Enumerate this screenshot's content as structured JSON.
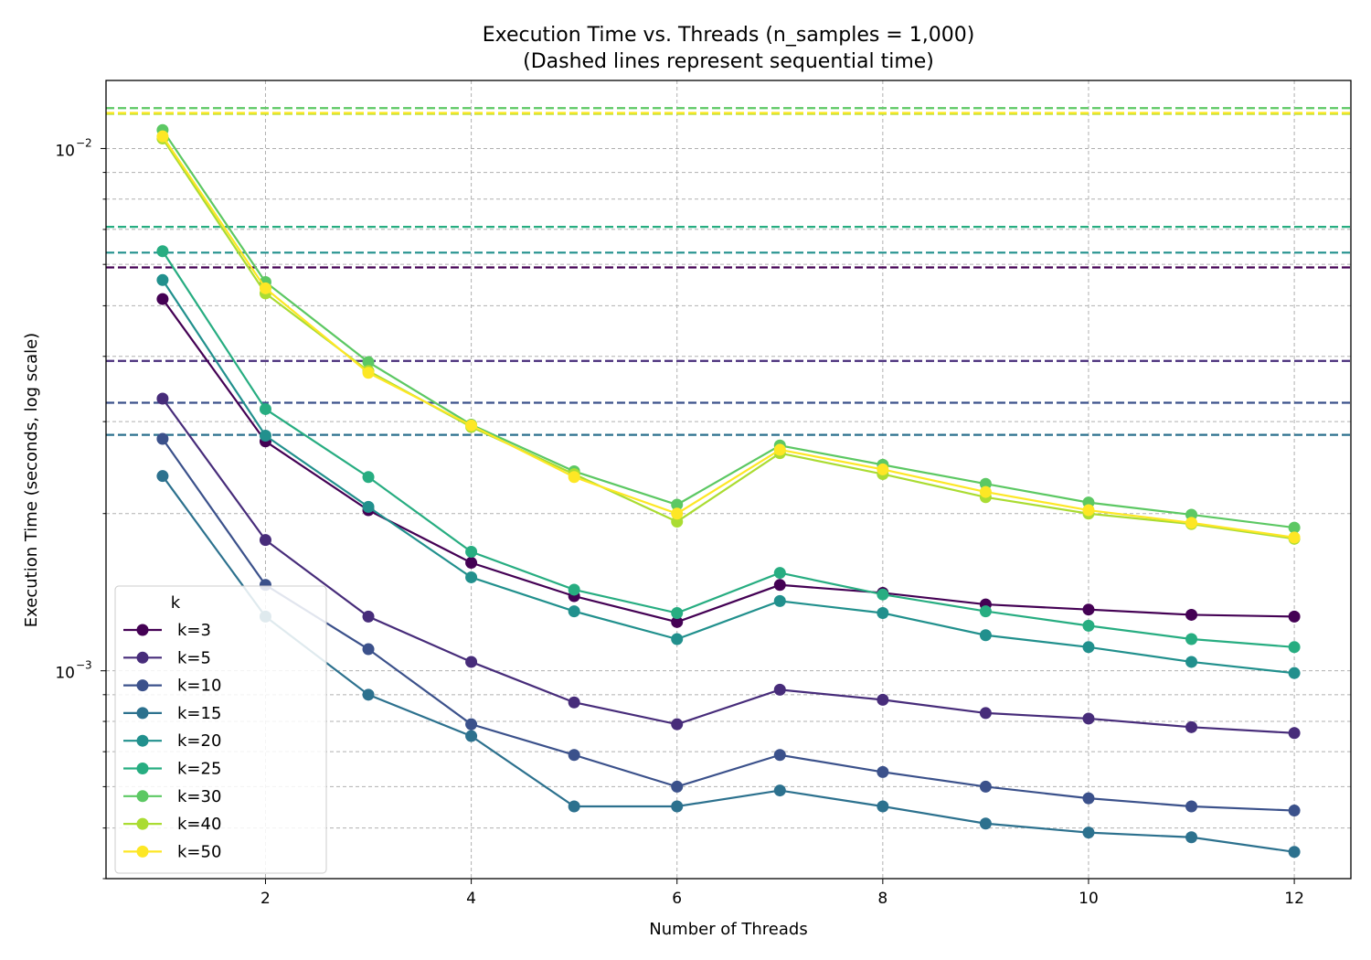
{
  "chart_data": {
    "type": "line",
    "title": "Execution Time vs. Threads (n_samples = 1,000)",
    "subtitle": "(Dashed lines represent sequential time)",
    "xlabel": "Number of Threads",
    "ylabel": "Execution Time (seconds, log scale)",
    "yscale": "log",
    "xlim": [
      0.45,
      12.55
    ],
    "ylim": [
      0.0004,
      0.0135
    ],
    "xticks": [
      2,
      4,
      6,
      8,
      10,
      12
    ],
    "yticks_major": [
      {
        "value": 0.001,
        "base": "10",
        "exp": "−3"
      },
      {
        "value": 0.01,
        "base": "10",
        "exp": "−2"
      }
    ],
    "grid": true,
    "legend": {
      "title": "k",
      "position": "lower-left"
    },
    "x": [
      1,
      2,
      3,
      4,
      5,
      6,
      7,
      8,
      9,
      10,
      11,
      12
    ],
    "series": [
      {
        "name": "k=3",
        "color": "#440154",
        "sequential": 0.00592,
        "values": [
          0.00515,
          0.00275,
          0.00203,
          0.00161,
          0.00139,
          0.00124,
          0.00146,
          0.00141,
          0.00134,
          0.00131,
          0.00128,
          0.00127
        ]
      },
      {
        "name": "k=5",
        "color": "#472c7a",
        "sequential": 0.00392,
        "values": [
          0.00332,
          0.00178,
          0.00127,
          0.00104,
          0.00087,
          0.00079,
          0.00092,
          0.00088,
          0.00083,
          0.00081,
          0.00078,
          0.00076
        ]
      },
      {
        "name": "k=10",
        "color": "#3b518b",
        "sequential": 0.00326,
        "values": [
          0.00278,
          0.00146,
          0.0011,
          0.00079,
          0.00069,
          0.0006,
          0.00069,
          0.00064,
          0.0006,
          0.00057,
          0.00055,
          0.00054
        ]
      },
      {
        "name": "k=15",
        "color": "#2c718e",
        "sequential": 0.00283,
        "values": [
          0.00236,
          0.00127,
          0.0009,
          0.00075,
          0.00055,
          0.00055,
          0.00059,
          0.00055,
          0.00051,
          0.00049,
          0.00048,
          0.00045
        ]
      },
      {
        "name": "k=20",
        "color": "#21908d",
        "sequential": 0.00632,
        "values": [
          0.0056,
          0.00282,
          0.00206,
          0.00151,
          0.0013,
          0.00115,
          0.00136,
          0.00129,
          0.00117,
          0.00111,
          0.00104,
          0.00099
        ]
      },
      {
        "name": "k=25",
        "color": "#27ad81",
        "sequential": 0.00708,
        "values": [
          0.00636,
          0.00317,
          0.00235,
          0.00169,
          0.00143,
          0.00129,
          0.00154,
          0.0014,
          0.0013,
          0.00122,
          0.00115,
          0.00111
        ]
      },
      {
        "name": "k=30",
        "color": "#5cc863",
        "sequential": 0.01195,
        "values": [
          0.01085,
          0.00555,
          0.0039,
          0.00296,
          0.00241,
          0.00208,
          0.0027,
          0.00248,
          0.00228,
          0.0021,
          0.00199,
          0.00188
        ]
      },
      {
        "name": "k=40",
        "color": "#aadc32",
        "sequential": 0.01165,
        "values": [
          0.01045,
          0.00528,
          0.00375,
          0.00293,
          0.00238,
          0.00193,
          0.00261,
          0.00238,
          0.00215,
          0.002,
          0.00191,
          0.00179
        ]
      },
      {
        "name": "k=50",
        "color": "#fde725",
        "sequential": 0.0117,
        "values": [
          0.01055,
          0.0054,
          0.00372,
          0.00295,
          0.00235,
          0.002,
          0.00265,
          0.00243,
          0.0022,
          0.00203,
          0.00192,
          0.0018
        ]
      }
    ]
  }
}
